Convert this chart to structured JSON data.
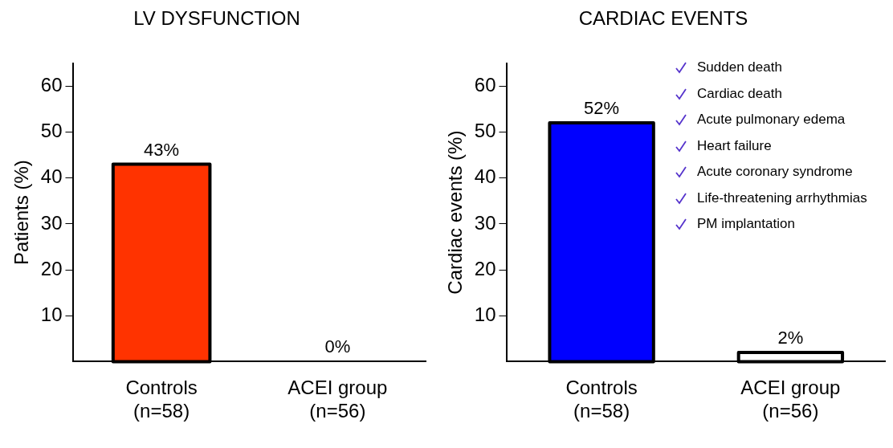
{
  "chart_data": [
    {
      "type": "bar",
      "title": "LV DYSFUNCTION",
      "ylabel": "Patients (%)",
      "categories": [
        "Controls\n(n=58)",
        "ACEI group\n(n=56)"
      ],
      "values": [
        43,
        0
      ],
      "value_labels": [
        "43%",
        "0%"
      ],
      "colors": [
        "#ff3300",
        "#ffffff"
      ],
      "ylim": [
        0,
        65
      ],
      "yticks": [
        10,
        20,
        30,
        40,
        50,
        60
      ],
      "grid": false,
      "legend": false
    },
    {
      "type": "bar",
      "title": "CARDIAC EVENTS",
      "ylabel": "Cardiac events (%)",
      "categories": [
        "Controls\n(n=58)",
        "ACEI group\n(n=56)"
      ],
      "values": [
        52,
        2
      ],
      "value_labels": [
        "52%",
        "2%"
      ],
      "colors": [
        "#0000ff",
        "#ffffff"
      ],
      "ylim": [
        0,
        65
      ],
      "yticks": [
        10,
        20,
        30,
        40,
        50,
        60
      ],
      "grid": false,
      "legend": false,
      "annotations": [
        "Sudden death",
        "Cardiac death",
        "Acute pulmonary edema",
        "Heart failure",
        "Acute coronary syndrome",
        "Life-threatening arrhythmias",
        "PM implantation"
      ]
    }
  ]
}
